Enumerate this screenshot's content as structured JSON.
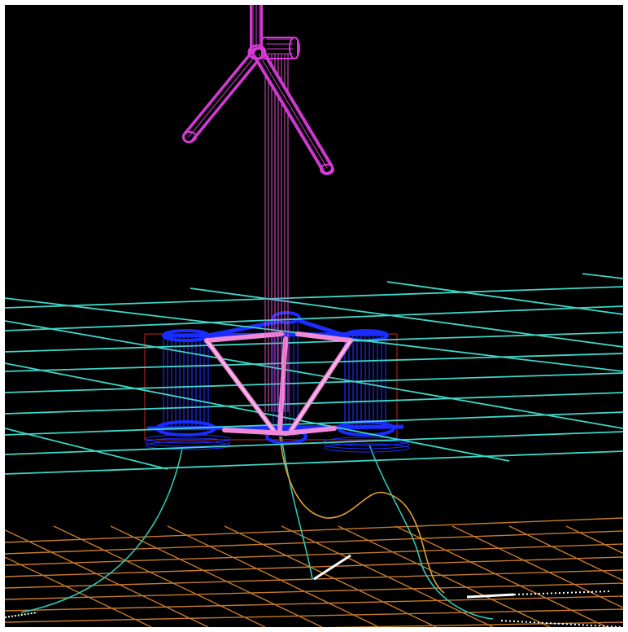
{
  "scene": {
    "background": "#000000",
    "frame_color": "#ffffff",
    "colors": {
      "turbine": "#d63ad6",
      "tower": "#e050c8",
      "water_grid": "#3fd6c8",
      "seabed_grid": "#c87a2a",
      "platform_frame": "#1a2cff",
      "platform_brace": "#f08ad8",
      "hull_outline": "#cc2222",
      "mooring_line": "#2ec8b8",
      "mooring_line_alt": "#e0a030",
      "anchor_chain": "#ffffff"
    },
    "objects": [
      "wind-turbine-rotor",
      "turbine-tower",
      "semisubmersible-platform",
      "sea-surface-grid",
      "seabed-grid",
      "mooring-lines",
      "anchor-chains"
    ]
  }
}
